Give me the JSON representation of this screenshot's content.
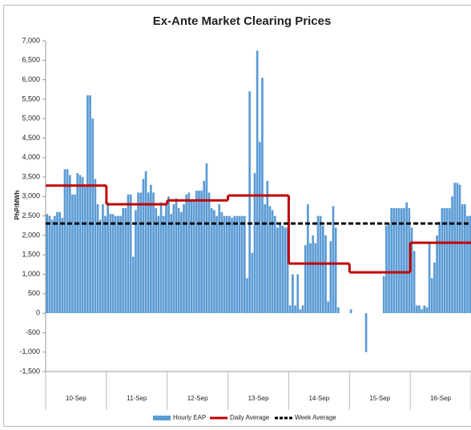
{
  "chart_data": {
    "type": "bar",
    "title": "Ex-Ante Market Clearing Prices",
    "y_label": "PhP/MWh",
    "categories": [
      null,
      null,
      null,
      null,
      null,
      null,
      null,
      null,
      null,
      null,
      null,
      null,
      "10-Sep",
      null,
      null,
      null,
      null,
      null,
      null,
      null,
      null,
      null,
      null,
      null,
      null,
      null,
      null,
      null,
      null,
      null,
      null,
      null,
      null,
      null,
      null,
      null,
      "11-Sep",
      null,
      null,
      null,
      null,
      null,
      null,
      null,
      null,
      null,
      null,
      null,
      null,
      null,
      null,
      null,
      null,
      null,
      null,
      null,
      null,
      null,
      null,
      null,
      "12-Sep",
      null,
      null,
      null,
      null,
      null,
      null,
      null,
      null,
      null,
      null,
      null,
      null,
      null,
      null,
      null,
      null,
      null,
      null,
      null,
      null,
      null,
      null,
      null,
      "13-Sep",
      null,
      null,
      null,
      null,
      null,
      null,
      null,
      null,
      null,
      null,
      null,
      null,
      null,
      null,
      null,
      null,
      null,
      null,
      null,
      null,
      null,
      null,
      null,
      "14-Sep",
      null,
      null,
      null,
      null,
      null,
      null,
      null,
      null,
      null,
      null,
      null,
      null,
      null,
      null,
      null,
      null,
      null,
      null,
      null,
      null,
      null,
      null,
      null,
      "15-Sep",
      null,
      null,
      null,
      null,
      null,
      null,
      null,
      null,
      null,
      null,
      null,
      null,
      null,
      null,
      null,
      null,
      null,
      null,
      null,
      null,
      null,
      null,
      null,
      "16-Sep",
      null,
      null,
      null,
      null,
      null,
      null,
      null,
      null,
      null,
      null,
      null
    ],
    "series": [
      {
        "name": "Hourly EAP",
        "color": "#5b9bd5",
        "values": [
          2550,
          2500,
          2400,
          2500,
          2600,
          2600,
          2450,
          3700,
          3700,
          3550,
          3050,
          3050,
          3600,
          3550,
          3500,
          3250,
          5600,
          5600,
          5000,
          3450,
          2800,
          2400,
          2800,
          2500,
          2850,
          2550,
          2550,
          2500,
          2500,
          2500,
          2700,
          2700,
          3050,
          3050,
          1450,
          2650,
          3100,
          3100,
          3450,
          3650,
          3100,
          3300,
          3100,
          2700,
          2500,
          2850,
          2500,
          2800,
          3000,
          2550,
          2800,
          2950,
          2700,
          2600,
          2800,
          3050,
          3100,
          2900,
          2900,
          3150,
          3150,
          3150,
          3400,
          3850,
          3100,
          2700,
          2650,
          2500,
          2800,
          2600,
          2500,
          2500,
          2500,
          2450,
          2500,
          2500,
          2500,
          2500,
          2500,
          900,
          5700,
          1550,
          3600,
          6750,
          4400,
          6050,
          2800,
          3400,
          2750,
          2650,
          2500,
          2200,
          2300,
          2250,
          2200,
          2200,
          200,
          1000,
          200,
          1000,
          100,
          200,
          1750,
          2800,
          1800,
          2000,
          1800,
          2500,
          2500,
          2250,
          2000,
          300,
          1850,
          2750,
          2200,
          150,
          0,
          0,
          0,
          0,
          100,
          0,
          0,
          0,
          0,
          0,
          -1000,
          0,
          0,
          0,
          0,
          0,
          0,
          950,
          2250,
          2300,
          2700,
          2700,
          2700,
          2700,
          2700,
          2700,
          2850,
          2700,
          2200,
          1600,
          200,
          200,
          100,
          200,
          150,
          1800,
          900,
          1300,
          2000,
          2350,
          2700,
          2700,
          2700,
          2700,
          3000,
          3350,
          3350,
          3300,
          2800,
          2800,
          2500,
          2500
        ]
      }
    ],
    "daily_average": {
      "name": "Daily Average",
      "color": "#c00000",
      "values": [
        3280,
        2800,
        2900,
        3025,
        1275,
        1050,
        1810
      ]
    },
    "week_average": {
      "name": "Week Average",
      "color": "#000000",
      "value": 2305
    },
    "ylim": [
      -1500,
      7000
    ],
    "yticks": [
      {
        "value": -1500,
        "label": "-1,500"
      },
      {
        "value": -1000,
        "label": "-1,000"
      },
      -500,
      0,
      500,
      {
        "value": 1000,
        "label": "1,000"
      },
      {
        "value": 1500,
        "label": "1,500"
      },
      {
        "value": 2000,
        "label": "2,000"
      },
      {
        "value": 2500,
        "label": "2,500"
      },
      {
        "value": 3000,
        "label": "3,000"
      },
      {
        "value": 3500,
        "label": "3,500"
      },
      {
        "value": 4000,
        "label": "4,000"
      },
      {
        "value": 4500,
        "label": "4,500"
      },
      {
        "value": 5000,
        "label": "5,000"
      },
      {
        "value": 5500,
        "label": "5,500"
      },
      {
        "value": 6000,
        "label": "6,000"
      },
      {
        "value": 6500,
        "label": "6,500"
      },
      {
        "value": 7000,
        "label": "7,000"
      }
    ],
    "grid": false,
    "legend": "bottom"
  }
}
